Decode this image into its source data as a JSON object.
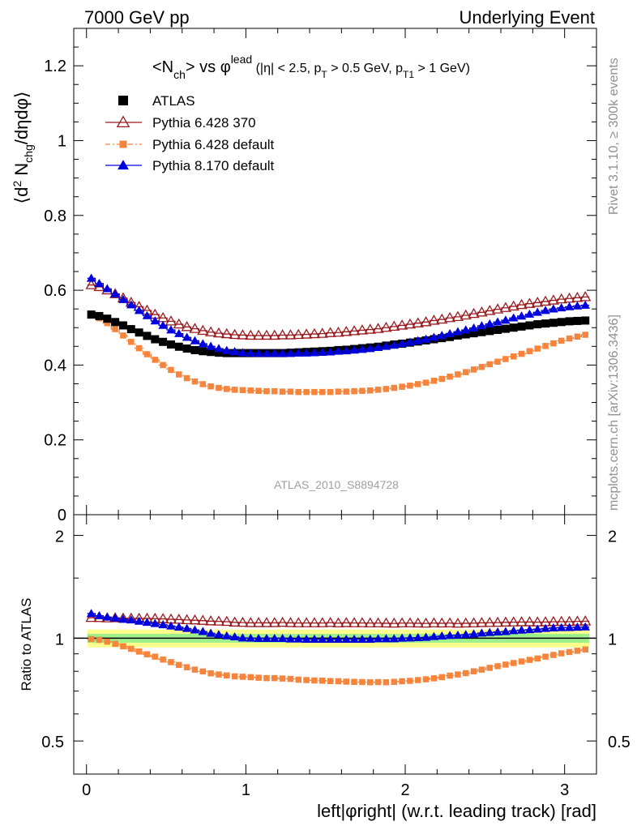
{
  "header": {
    "left": "7000 GeV pp",
    "right": "Underlying Event"
  },
  "side_labels": {
    "rivet": "Rivet 3.1.10, ≥ 300k events",
    "mcplots": "mcplots.cern.ch [arXiv:1306.3436]"
  },
  "watermark": "ATLAS_2010_S8894728",
  "colors": {
    "atlas": "#000000",
    "pythia6_370": "#9b1b1f",
    "pythia6_default": "#f5843c",
    "pythia8": "#0000dd",
    "band_outer": "#fefe8c",
    "band_inner": "#9ef08c",
    "ratio_line": "#00aa00"
  },
  "chart_data": [
    {
      "type": "scatter",
      "panel": "main",
      "title": {
        "main": "<N_ch> vs φ^lead",
        "cuts": "(|η| < 2.5, p_T > 0.5 GeV, p_T1 > 1 GeV)"
      },
      "ylabel": "⟨d² N_chg/dηdφ⟩",
      "xlim": [
        -0.08,
        3.2
      ],
      "ylim": [
        0,
        1.3
      ],
      "yticks": [
        "0",
        "0.2",
        "0.4",
        "0.6",
        "0.8",
        "1",
        "1.2"
      ],
      "legend_position": "top-left",
      "x": [
        0.03,
        0.08,
        0.13,
        0.18,
        0.23,
        0.28,
        0.33,
        0.38,
        0.43,
        0.48,
        0.53,
        0.58,
        0.63,
        0.68,
        0.73,
        0.78,
        0.83,
        0.88,
        0.93,
        0.98,
        1.03,
        1.08,
        1.13,
        1.18,
        1.23,
        1.28,
        1.33,
        1.38,
        1.43,
        1.48,
        1.53,
        1.58,
        1.63,
        1.68,
        1.73,
        1.78,
        1.83,
        1.88,
        1.93,
        1.98,
        2.03,
        2.08,
        2.13,
        2.18,
        2.23,
        2.28,
        2.33,
        2.38,
        2.43,
        2.48,
        2.53,
        2.58,
        2.63,
        2.68,
        2.73,
        2.78,
        2.83,
        2.88,
        2.93,
        2.98,
        3.03,
        3.08,
        3.13
      ],
      "series": [
        {
          "name": "ATLAS",
          "marker": "square",
          "values": [
            0.535,
            0.531,
            0.524,
            0.515,
            0.506,
            0.496,
            0.487,
            0.478,
            0.469,
            0.462,
            0.455,
            0.449,
            0.444,
            0.44,
            0.437,
            0.435,
            0.433,
            0.432,
            0.432,
            0.432,
            0.432,
            0.432,
            0.432,
            0.432,
            0.432,
            0.433,
            0.434,
            0.435,
            0.436,
            0.437,
            0.438,
            0.44,
            0.441,
            0.443,
            0.445,
            0.447,
            0.449,
            0.452,
            0.455,
            0.457,
            0.46,
            0.463,
            0.466,
            0.469,
            0.472,
            0.475,
            0.479,
            0.482,
            0.485,
            0.488,
            0.491,
            0.494,
            0.497,
            0.5,
            0.503,
            0.506,
            0.509,
            0.511,
            0.513,
            0.515,
            0.517,
            0.518,
            0.519
          ]
        },
        {
          "name": "Pythia 6.428 370",
          "marker": "triangle-open",
          "values": [
            0.614,
            0.609,
            0.6,
            0.59,
            0.579,
            0.567,
            0.556,
            0.546,
            0.535,
            0.526,
            0.517,
            0.509,
            0.502,
            0.497,
            0.492,
            0.488,
            0.485,
            0.483,
            0.481,
            0.48,
            0.479,
            0.479,
            0.479,
            0.479,
            0.48,
            0.48,
            0.481,
            0.482,
            0.483,
            0.484,
            0.486,
            0.487,
            0.489,
            0.491,
            0.493,
            0.495,
            0.497,
            0.5,
            0.503,
            0.506,
            0.509,
            0.512,
            0.515,
            0.519,
            0.522,
            0.526,
            0.529,
            0.533,
            0.537,
            0.541,
            0.545,
            0.549,
            0.553,
            0.557,
            0.561,
            0.564,
            0.567,
            0.57,
            0.573,
            0.576,
            0.578,
            0.58,
            0.582
          ]
        },
        {
          "name": "Pythia 6.428 default",
          "marker": "square-small",
          "values": [
            0.532,
            0.525,
            0.512,
            0.496,
            0.479,
            0.462,
            0.445,
            0.429,
            0.414,
            0.4,
            0.387,
            0.375,
            0.365,
            0.356,
            0.349,
            0.343,
            0.339,
            0.336,
            0.334,
            0.333,
            0.332,
            0.331,
            0.33,
            0.33,
            0.329,
            0.329,
            0.328,
            0.328,
            0.328,
            0.328,
            0.328,
            0.329,
            0.329,
            0.33,
            0.331,
            0.332,
            0.334,
            0.336,
            0.339,
            0.342,
            0.345,
            0.349,
            0.353,
            0.358,
            0.363,
            0.369,
            0.375,
            0.381,
            0.388,
            0.395,
            0.402,
            0.409,
            0.416,
            0.423,
            0.43,
            0.437,
            0.444,
            0.451,
            0.458,
            0.465,
            0.471,
            0.476,
            0.481
          ]
        },
        {
          "name": "Pythia 8.170 default",
          "marker": "triangle-filled",
          "values": [
            0.632,
            0.618,
            0.604,
            0.59,
            0.575,
            0.561,
            0.546,
            0.532,
            0.518,
            0.506,
            0.494,
            0.484,
            0.474,
            0.465,
            0.457,
            0.45,
            0.444,
            0.439,
            0.436,
            0.433,
            0.432,
            0.431,
            0.431,
            0.431,
            0.431,
            0.431,
            0.432,
            0.432,
            0.433,
            0.434,
            0.435,
            0.437,
            0.438,
            0.44,
            0.442,
            0.444,
            0.447,
            0.45,
            0.453,
            0.457,
            0.461,
            0.465,
            0.469,
            0.474,
            0.479,
            0.484,
            0.489,
            0.494,
            0.499,
            0.505,
            0.51,
            0.515,
            0.52,
            0.526,
            0.531,
            0.536,
            0.541,
            0.546,
            0.55,
            0.553,
            0.556,
            0.558,
            0.56
          ]
        }
      ]
    },
    {
      "type": "scatter",
      "panel": "ratio",
      "ylabel": "Ratio to ATLAS",
      "xlabel": "left|φright| (w.r.t. leading track) [rad]",
      "xlim": [
        -0.08,
        3.2
      ],
      "ylim": [
        0.4,
        2.3
      ],
      "yscale": "log",
      "xticks": [
        "0",
        "1",
        "2",
        "3"
      ],
      "yticks": [
        "0.5",
        "1",
        "2"
      ],
      "reference_line": 1,
      "band_inner": [
        0.97,
        1.03
      ],
      "band_outer": [
        0.94,
        1.06
      ],
      "series": [
        {
          "name": "Pythia 6.428 370",
          "values": [
            1.148,
            1.147,
            1.145,
            1.146,
            1.144,
            1.143,
            1.142,
            1.142,
            1.141,
            1.139,
            1.136,
            1.134,
            1.131,
            1.129,
            1.126,
            1.122,
            1.12,
            1.118,
            1.113,
            1.111,
            1.109,
            1.109,
            1.109,
            1.109,
            1.111,
            1.109,
            1.108,
            1.108,
            1.108,
            1.108,
            1.11,
            1.107,
            1.109,
            1.108,
            1.108,
            1.107,
            1.107,
            1.106,
            1.105,
            1.107,
            1.107,
            1.106,
            1.105,
            1.107,
            1.106,
            1.107,
            1.104,
            1.106,
            1.107,
            1.109,
            1.11,
            1.111,
            1.113,
            1.114,
            1.115,
            1.115,
            1.114,
            1.115,
            1.117,
            1.118,
            1.118,
            1.12,
            1.121
          ]
        },
        {
          "name": "Pythia 6.428 default",
          "values": [
            0.994,
            0.989,
            0.977,
            0.963,
            0.947,
            0.931,
            0.914,
            0.897,
            0.883,
            0.866,
            0.851,
            0.835,
            0.822,
            0.809,
            0.799,
            0.789,
            0.783,
            0.778,
            0.773,
            0.771,
            0.769,
            0.766,
            0.764,
            0.764,
            0.762,
            0.76,
            0.756,
            0.754,
            0.752,
            0.751,
            0.749,
            0.748,
            0.746,
            0.745,
            0.744,
            0.743,
            0.744,
            0.743,
            0.745,
            0.748,
            0.75,
            0.754,
            0.758,
            0.763,
            0.769,
            0.777,
            0.783,
            0.79,
            0.8,
            0.809,
            0.819,
            0.828,
            0.837,
            0.846,
            0.855,
            0.864,
            0.872,
            0.883,
            0.893,
            0.903,
            0.911,
            0.919,
            0.927
          ]
        },
        {
          "name": "Pythia 8.170 default",
          "values": [
            1.181,
            1.164,
            1.153,
            1.146,
            1.136,
            1.131,
            1.121,
            1.113,
            1.104,
            1.095,
            1.086,
            1.078,
            1.068,
            1.057,
            1.046,
            1.034,
            1.025,
            1.016,
            1.009,
            1.002,
            1.0,
            0.998,
            0.998,
            0.998,
            0.998,
            0.995,
            0.995,
            0.993,
            0.993,
            0.993,
            0.993,
            0.993,
            0.993,
            0.993,
            0.993,
            0.993,
            0.996,
            0.996,
            0.996,
            1.0,
            1.002,
            1.004,
            1.006,
            1.011,
            1.015,
            1.019,
            1.021,
            1.025,
            1.029,
            1.035,
            1.039,
            1.043,
            1.046,
            1.052,
            1.056,
            1.059,
            1.063,
            1.068,
            1.072,
            1.074,
            1.075,
            1.077,
            1.079
          ]
        }
      ]
    }
  ]
}
